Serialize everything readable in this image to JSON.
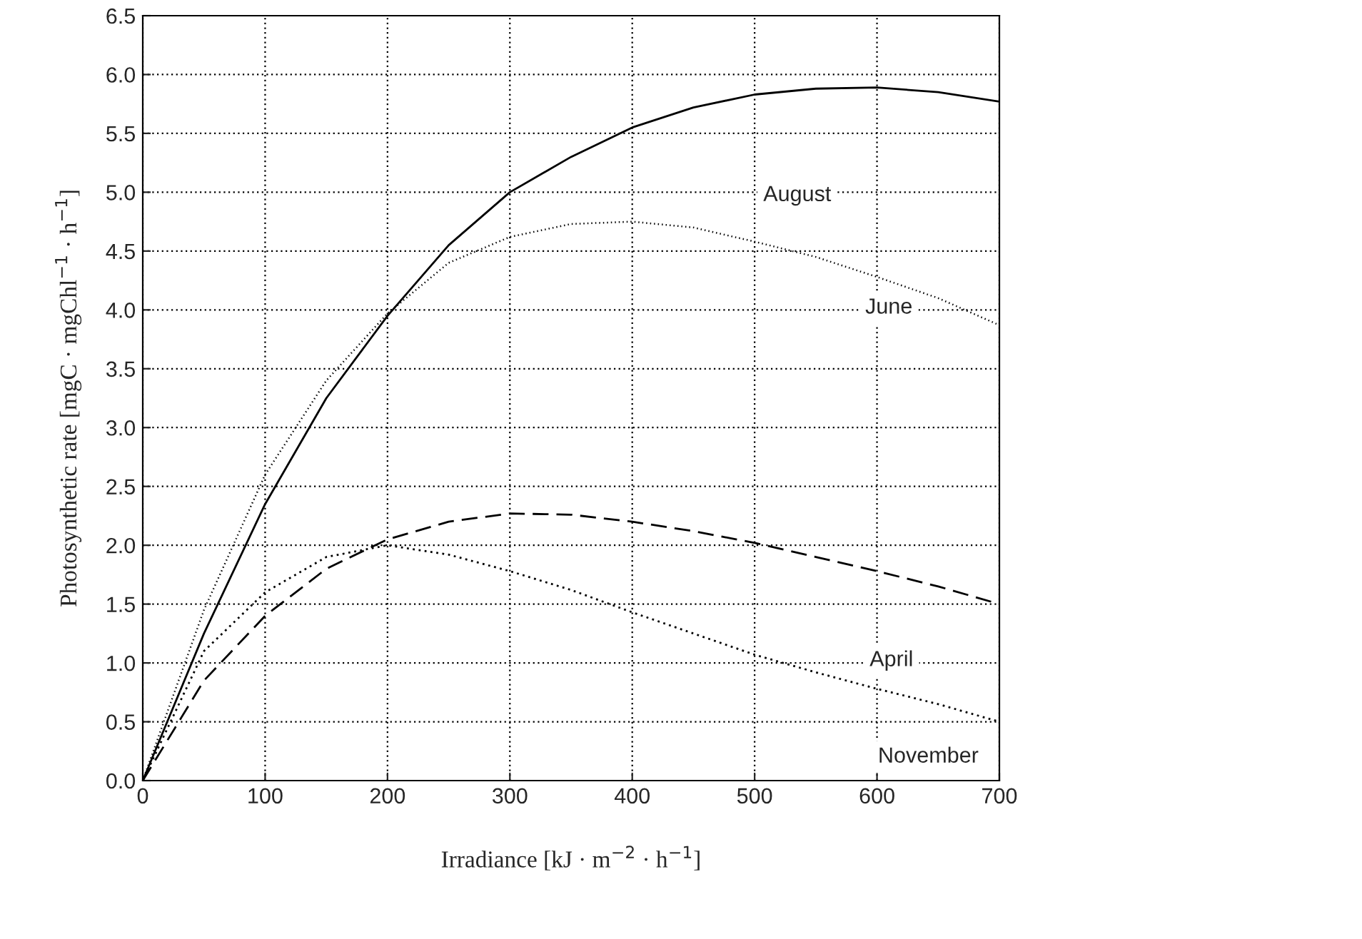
{
  "chart_data": {
    "type": "line",
    "xlabel": "Irradiance [kJ · m$^{−2}$ · h$^{−1}$]",
    "ylabel": "Photosynthetic rate [mgC · mgChl$^{−1}$ · h$^{−1}$]",
    "x": [
      0,
      50,
      100,
      150,
      200,
      250,
      300,
      350,
      400,
      450,
      500,
      550,
      600,
      650,
      700
    ],
    "series": [
      {
        "color": "#000000",
        "line_style": "solid",
        "values": [
          0,
          1.25,
          2.35,
          3.25,
          3.95,
          4.55,
          5.0,
          5.3,
          5.55,
          5.72,
          5.83,
          5.88,
          5.89,
          5.85,
          5.77
        ]
      },
      {
        "color": "#000000",
        "line_style": "dotted",
        "values": [
          0,
          1.45,
          2.6,
          3.4,
          3.97,
          4.4,
          4.62,
          4.73,
          4.75,
          4.7,
          4.58,
          4.45,
          4.28,
          4.1,
          3.87
        ]
      },
      {
        "color": "#000000",
        "line_style": "dashed",
        "values": [
          0,
          0.85,
          1.4,
          1.8,
          2.05,
          2.2,
          2.27,
          2.26,
          2.2,
          2.12,
          2.02,
          1.9,
          1.78,
          1.65,
          1.5
        ]
      },
      {
        "color": "#000000",
        "line_style": "dotted",
        "values": [
          0,
          1.1,
          1.6,
          1.9,
          2.0,
          1.92,
          1.78,
          1.62,
          1.43,
          1.25,
          1.07,
          0.92,
          0.78,
          0.65,
          0.5
        ]
      }
    ],
    "annotations": [
      "August",
      "June",
      "April",
      "November"
    ],
    "xlim": [
      0,
      700
    ],
    "xticks": [
      0,
      100,
      200,
      300,
      400,
      500,
      600,
      700
    ],
    "ylim": [
      0,
      6.5
    ],
    "yticks": [
      {
        "value": 0,
        "label": "0.0"
      },
      0.5,
      {
        "value": 1,
        "label": "1.0"
      },
      1.5,
      {
        "value": 2,
        "label": "2.0"
      },
      2.5,
      {
        "value": 3,
        "label": "3.0"
      },
      3.5,
      {
        "value": 4,
        "label": "4.0"
      },
      4.5,
      {
        "value": 5,
        "label": "5.0"
      },
      5.5,
      {
        "value": 6,
        "label": "6.0"
      },
      6.5
    ],
    "grid": true,
    "legend": false
  }
}
